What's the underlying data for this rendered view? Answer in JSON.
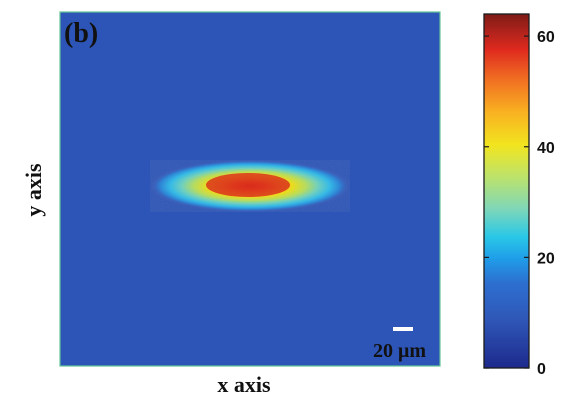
{
  "chart_data": {
    "type": "heatmap",
    "panel_label": "(b)",
    "xlabel": "x axis",
    "ylabel": "y axis",
    "scale_bar_label": "20 μm",
    "colorbar": {
      "min": 0,
      "max": 64,
      "ticks": [
        "0",
        "20",
        "40",
        "60"
      ],
      "tick_values": [
        0,
        20,
        40,
        60
      ]
    },
    "background_value": 5,
    "spot": {
      "description_value_peak": 60,
      "shape": "elongated ellipse",
      "orientation": "horizontal"
    },
    "colormap": [
      "#1d2a8c",
      "#2f58b8",
      "#2d6fd0",
      "#1f9ee8",
      "#29c7e7",
      "#7fd7b8",
      "#bde36b",
      "#f2e41f",
      "#f9b321",
      "#f06b22",
      "#de2a1e",
      "#a6211b",
      "#7d1c14"
    ]
  }
}
